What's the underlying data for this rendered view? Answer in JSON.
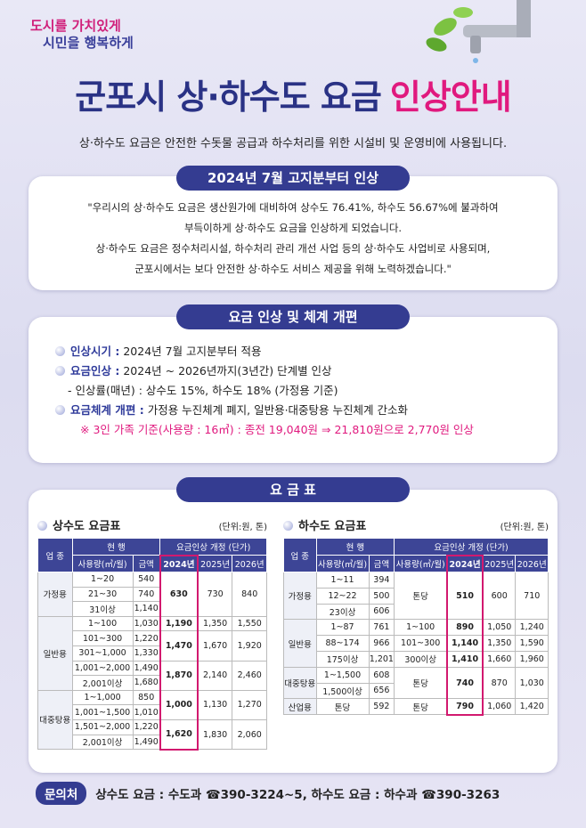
{
  "slogan": [
    "도시를 가치있게",
    "시민을 행복하게"
  ],
  "title": [
    "군포시 상·하수도 요금",
    "인상안내"
  ],
  "intro": "상·하수도 요금은 안전한 수돗물 공급과 하수처리를 위한 시설비 및 운영비에 사용됩니다.",
  "notice": {
    "header": "2024년 7월 고지분부터 인상",
    "lines": [
      "\"우리시의 상·하수도 요금은 생산원가에 대비하여 상수도 76.41%, 하수도 56.67%에 불과하여",
      "부득이하게 상·하수도 요금을 인상하게 되었습니다.",
      "상·하수도 요금은 정수처리시설, 하수처리 관리 개선 사업 등의 상·하수도 사업비로 사용되며,",
      "군포시에서는 보다 안전한 상·하수도 서비스 제공을 위해 노력하겠습니다.\""
    ]
  },
  "reform": {
    "header": "요금 인상 및 체계 개편",
    "items": [
      {
        "label": "인상시기 :",
        "text": "2024년 7월 고지분부터 적용"
      },
      {
        "label": "요금인상 :",
        "text": "2024년 ~ 2026년까지(3년간) 단계별 인상",
        "sub": "- 인상률(매년) : 상수도 15%, 하수도 18% (가정용 기준)"
      },
      {
        "label": "요금체계 개편 :",
        "text": "가정용 누진체계 폐지, 일반용·대중탕용 누진체계 간소화"
      }
    ],
    "note": "※ 3인 가족 기준(사용량 : 16㎥) : 종전 19,040원 ⇒ 21,810원으로 2,770원 인상"
  },
  "fees": {
    "header": "요 금 표"
  },
  "water_table": {
    "title": "상수도 요금표",
    "unit": "(단위:원, 톤)",
    "head": {
      "business": "업 종",
      "current": "현 행",
      "usage": "사용량(㎥/월)",
      "amount": "금액",
      "revised": "요금인상 개정 (단가)",
      "years": [
        "2024년",
        "2025년",
        "2026년"
      ]
    },
    "rows": [
      {
        "category": "가정용",
        "groups": [
          {
            "current": [
              [
                "1~20",
                "540"
              ],
              [
                "21~30",
                "740"
              ],
              [
                "31이상",
                "1,140"
              ]
            ],
            "rates": [
              "630",
              "730",
              "840"
            ]
          }
        ]
      },
      {
        "category": "일반용",
        "groups": [
          {
            "current": [
              [
                "1~100",
                "1,030"
              ]
            ],
            "rates": [
              "1,190",
              "1,350",
              "1,550"
            ]
          },
          {
            "current": [
              [
                "101~300",
                "1,220"
              ],
              [
                "301~1,000",
                "1,330"
              ]
            ],
            "rates": [
              "1,470",
              "1,670",
              "1,920"
            ]
          },
          {
            "current": [
              [
                "1,001~2,000",
                "1,490"
              ],
              [
                "2,001이상",
                "1,680"
              ]
            ],
            "rates": [
              "1,870",
              "2,140",
              "2,460"
            ]
          }
        ]
      },
      {
        "category": "대중탕용",
        "groups": [
          {
            "current": [
              [
                "1~1,000",
                "850"
              ],
              [
                "1,001~1,500",
                "1,010"
              ]
            ],
            "rates": [
              "1,000",
              "1,130",
              "1,270"
            ]
          },
          {
            "current": [
              [
                "1,501~2,000",
                "1,220"
              ],
              [
                "2,001이상",
                "1,490"
              ]
            ],
            "rates": [
              "1,620",
              "1,830",
              "2,060"
            ]
          }
        ]
      }
    ]
  },
  "sewer_table": {
    "title": "하수도 요금표",
    "unit": "(단위:원, 톤)",
    "head": {
      "business": "업 종",
      "current": "현 행",
      "usage": "사용량(㎥/월)",
      "amount": "금액",
      "revised": "요금인상 개정 (단가)",
      "new_usage": "사용량(㎥/월)",
      "years": [
        "2024년",
        "2025년",
        "2026년"
      ]
    },
    "rows": [
      {
        "category": "가정용",
        "groups": [
          {
            "current": [
              [
                "1~11",
                "394"
              ],
              [
                "12~22",
                "500"
              ],
              [
                "23이상",
                "606"
              ]
            ],
            "usage": "톤당",
            "rates": [
              "510",
              "600",
              "710"
            ]
          }
        ]
      },
      {
        "category": "일반용",
        "groups": [
          {
            "current": [
              [
                "1~87",
                "761"
              ]
            ],
            "usage": "1~100",
            "rates": [
              "890",
              "1,050",
              "1,240"
            ]
          },
          {
            "current": [
              [
                "88~174",
                "966"
              ]
            ],
            "usage": "101~300",
            "rates": [
              "1,140",
              "1,350",
              "1,590"
            ]
          },
          {
            "current": [
              [
                "175이상",
                "1,201"
              ]
            ],
            "usage": "300이상",
            "rates": [
              "1,410",
              "1,660",
              "1,960"
            ]
          }
        ]
      },
      {
        "category": "대중탕용",
        "groups": [
          {
            "current": [
              [
                "1~1,500",
                "608"
              ],
              [
                "1,500이상",
                "656"
              ]
            ],
            "usage": "톤당",
            "rates": [
              "740",
              "870",
              "1,030"
            ]
          }
        ]
      },
      {
        "category": "산업용",
        "groups": [
          {
            "current": [
              [
                "톤당",
                "592"
              ]
            ],
            "usage": "톤당",
            "rates": [
              "790",
              "1,060",
              "1,420"
            ]
          }
        ]
      }
    ]
  },
  "contact": {
    "label": "문의처",
    "text": "상수도 요금 : 수도과 ☎390-3224~5, 하수도 요금 : 하수과 ☎390-3263"
  }
}
